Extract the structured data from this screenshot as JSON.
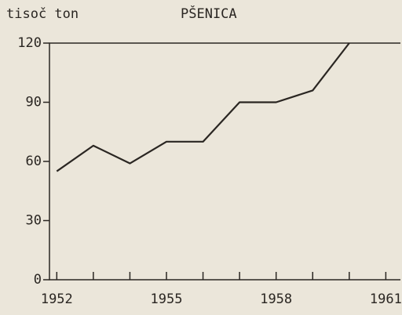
{
  "chart_data": {
    "type": "line",
    "title": "PŠENICA",
    "y_label": "tisoč ton",
    "x": [
      1952,
      1953,
      1954,
      1955,
      1956,
      1957,
      1958,
      1959,
      1960
    ],
    "series": [
      {
        "color": "#2a2622",
        "values": [
          55,
          68,
          59,
          70,
          70,
          90,
          90,
          96,
          120
        ]
      }
    ],
    "xlim": [
      1951.8,
      1961.4
    ],
    "xticks": [
      1952,
      1955,
      1958,
      1961
    ],
    "xminor_ticks": [
      1953,
      1954,
      1956,
      1957,
      1959,
      1960
    ],
    "ylim": [
      0,
      120
    ],
    "yticks": [
      0,
      30,
      60,
      90,
      120
    ]
  }
}
